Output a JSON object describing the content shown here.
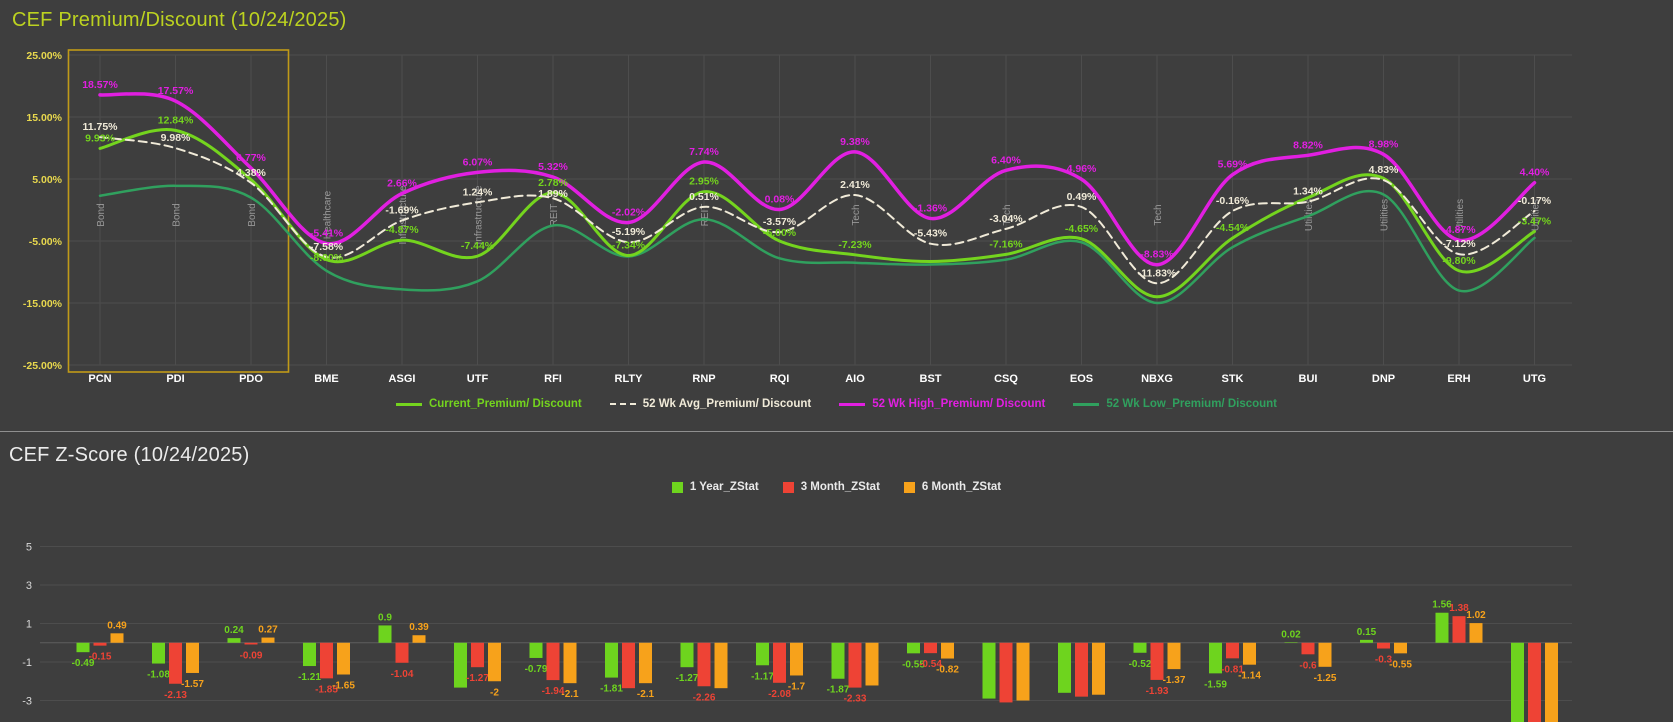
{
  "premium_chart": {
    "title": "CEF Premium/Discount (10/24/2025)",
    "title_color": "#bcd220",
    "y_ticks": [
      "25.00%",
      "15.00%",
      "5.00%",
      "-5.00%",
      "-15.00%",
      "-25.00%"
    ],
    "legend": [
      {
        "label": "Current_Premium/ Discount",
        "color": "#74d41e",
        "dash": false
      },
      {
        "label": "52 Wk Avg_Premium/ Discount",
        "color": "#f0ead8",
        "dash": true
      },
      {
        "label": "52 Wk High_Premium/ Discount",
        "color": "#e11fe1",
        "dash": false
      },
      {
        "label": "52 Wk Low_Premium/ Discount",
        "color": "#30a05e",
        "dash": false
      }
    ],
    "highlight": {
      "tickers": [
        "PCN",
        "PDI",
        "PDO"
      ],
      "border_color": "#c09a18"
    }
  },
  "zscore_chart": {
    "title": "CEF Z-Score (10/24/2025)",
    "y_ticks": [
      "5",
      "3",
      "1",
      "-1",
      "-3"
    ],
    "legend": [
      {
        "label": "1 Year_ZStat",
        "color": "#6ed41e"
      },
      {
        "label": "3 Month_ZStat",
        "color": "#ee4335"
      },
      {
        "label": "6 Month_ZStat",
        "color": "#f7a21b"
      }
    ]
  },
  "chart_data": [
    {
      "type": "line",
      "title": "CEF Premium/Discount (10/24/2025)",
      "categories": [
        "PCN",
        "PDI",
        "PDO",
        "BME",
        "ASGI",
        "UTF",
        "RFI",
        "RLTY",
        "RNP",
        "RQI",
        "AIO",
        "BST",
        "CSQ",
        "EOS",
        "NBXG",
        "STK",
        "BUI",
        "DNP",
        "ERH",
        "UTG"
      ],
      "sector_labels": [
        "Bond",
        "Bond",
        "Bond",
        "Healthcare",
        "Infrastructure",
        "Infrastructure",
        "REIT",
        "",
        "REIT",
        "",
        "Tech",
        "",
        "Tech",
        "",
        "Tech",
        "",
        "Utilities",
        "Utilities",
        "Utilities",
        "Utilities"
      ],
      "ylim": [
        -25,
        25
      ],
      "y_tick_values": [
        25,
        15,
        5,
        -5,
        -15,
        -25
      ],
      "grid": true,
      "legend_position": "bottom",
      "series": [
        {
          "name": "Current_Premium/ Discount",
          "color": "#74d41e",
          "dash": false,
          "width": 3,
          "values": [
            9.93,
            12.84,
            4.9,
            -8.0,
            -4.87,
            -7.44,
            2.78,
            -7.34,
            2.95,
            -5.0,
            -7.23,
            -8.3,
            -7.16,
            -4.65,
            -14.0,
            -4.54,
            2.0,
            5.1,
            -9.8,
            -3.47
          ],
          "labels": [
            "9.93%",
            "12.84%",
            "",
            "-8.00%",
            "-4.87%",
            "-7.44%",
            "2.78%",
            "-7.34%",
            "2.95%",
            "-5.00%",
            "-7.23%",
            "",
            "-7.16%",
            "-4.65%",
            "",
            "-4.54%",
            "",
            "",
            "-9.80%",
            "-3.47%"
          ]
        },
        {
          "name": "52 Wk Avg_Premium/ Discount",
          "color": "#f0ead8",
          "dash": true,
          "width": 2,
          "values": [
            11.75,
            9.98,
            4.38,
            -7.58,
            -1.69,
            1.24,
            1.89,
            -5.19,
            0.51,
            -3.57,
            2.41,
            -5.43,
            -3.04,
            0.49,
            -11.83,
            -0.16,
            1.34,
            4.83,
            -7.12,
            -0.17
          ],
          "labels": [
            "11.75%",
            "9.98%",
            "4.38%",
            "-7.58%",
            "-1.69%",
            "1.24%",
            "1.89%",
            "-5.19%",
            "0.51%",
            "-3.57%",
            "2.41%",
            "-5.43%",
            "-3.04%",
            "0.49%",
            "-11.83%",
            "-0.16%",
            "1.34%",
            "4.83%",
            "-7.12%",
            "-0.17%"
          ]
        },
        {
          "name": "52 Wk High_Premium/ Discount",
          "color": "#e11fe1",
          "dash": false,
          "width": 3.5,
          "values": [
            18.57,
            17.57,
            6.77,
            -5.41,
            2.66,
            6.07,
            5.32,
            -2.02,
            7.74,
            0.08,
            9.38,
            -1.36,
            6.4,
            4.96,
            -8.83,
            5.69,
            8.82,
            8.98,
            -4.87,
            4.4
          ],
          "labels": [
            "18.57%",
            "17.57%",
            "6.77%",
            "-5.41%",
            "2.66%",
            "6.07%",
            "5.32%",
            "-2.02%",
            "7.74%",
            "0.08%",
            "9.38%",
            "-1.36%",
            "6.40%",
            "4.96%",
            "-8.83%",
            "5.69%",
            "8.82%",
            "8.98%",
            "-4.87%",
            "4.40%"
          ]
        },
        {
          "name": "52 Wk Low_Premium/ Discount",
          "color": "#30a05e",
          "dash": false,
          "width": 2.5,
          "values": [
            2.3,
            3.9,
            2.0,
            -9.8,
            -12.8,
            -11.5,
            -2.5,
            -7.5,
            -1.5,
            -7.8,
            -8.5,
            -8.8,
            -8.0,
            -5.2,
            -15.0,
            -6.0,
            -1.0,
            2.5,
            -13.0,
            -4.5
          ],
          "labels": [
            "",
            "",
            "",
            "",
            "",
            "",
            "",
            "",
            "",
            "",
            "",
            "",
            "",
            "",
            "",
            "",
            "",
            "",
            "",
            ""
          ]
        }
      ]
    },
    {
      "type": "bar",
      "title": "CEF Z-Score (10/24/2025)",
      "categories": [
        "PCN",
        "PDI",
        "PDO",
        "BME",
        "ASGI",
        "UTF",
        "RFI",
        "RLTY",
        "RNP",
        "RQI",
        "AIO",
        "BST",
        "CSQ",
        "EOS",
        "NBXG",
        "STK",
        "BUI",
        "DNP",
        "ERH",
        "UTG"
      ],
      "ylim": [
        -3,
        5
      ],
      "y_tick_values": [
        5,
        3,
        1,
        -1,
        -3
      ],
      "grid": true,
      "legend_position": "top",
      "series": [
        {
          "name": "1 Year_ZStat",
          "color": "#6ed41e",
          "values": [
            -0.49,
            -1.08,
            0.24,
            -1.21,
            0.9,
            -2.33,
            -0.79,
            -1.81,
            -1.27,
            -1.17,
            -1.87,
            -0.55,
            -2.9,
            -2.6,
            -0.52,
            -1.59,
            0.02,
            0.15,
            1.56,
            -4.2
          ],
          "labels": [
            "-0.49",
            "-1.08",
            "0.24",
            "-1.21",
            "0.9",
            "",
            "-0.79",
            "-1.81",
            "-1.27",
            "-1.17",
            "-1.87",
            "-0.55",
            "",
            "",
            "-0.52",
            "-1.59",
            "0.02",
            "0.15",
            "1.56",
            ""
          ]
        },
        {
          "name": "3 Month_ZStat",
          "color": "#ee4335",
          "values": [
            -0.15,
            -2.13,
            -0.09,
            -1.85,
            -1.04,
            -1.27,
            -1.94,
            -2.36,
            -2.26,
            -2.08,
            -2.33,
            -0.54,
            -3.1,
            -2.8,
            -1.93,
            -0.81,
            -0.6,
            -0.3,
            1.38,
            -4.4
          ],
          "labels": [
            "-0.15",
            "-2.13",
            "-0.09",
            "-1.85",
            "-1.04",
            "-1.27",
            "-1.94",
            "",
            "-2.26",
            "-2.08",
            "-2.33",
            "-0.54",
            "",
            "",
            "-1.93",
            "-0.81",
            "-0.6",
            "-0.3",
            "1.38",
            ""
          ]
        },
        {
          "name": "6 Month_ZStat",
          "color": "#f7a21b",
          "values": [
            0.49,
            -1.57,
            0.27,
            -1.65,
            0.39,
            -2.0,
            -2.1,
            -2.1,
            -2.36,
            -1.7,
            -2.22,
            -0.82,
            -3.0,
            -2.7,
            -1.37,
            -1.14,
            -1.25,
            -0.55,
            1.02,
            -4.3
          ],
          "labels": [
            "0.49",
            "-1.57",
            "0.27",
            "-1.65",
            "0.39",
            "-2",
            "-2.1",
            "-2.1",
            "",
            "-1.7",
            "",
            "-0.82",
            "",
            "",
            "-1.37",
            "-1.14",
            "-1.25",
            "-0.55",
            "1.02",
            ""
          ]
        }
      ]
    }
  ]
}
